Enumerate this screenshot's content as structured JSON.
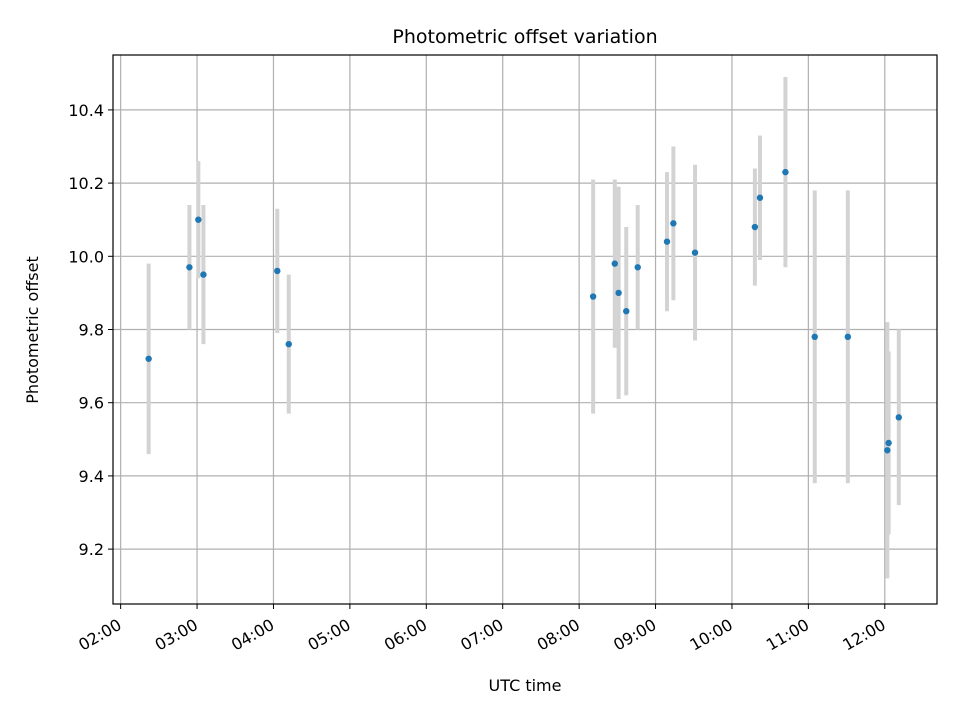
{
  "chart_data": {
    "type": "scatter",
    "title": "Photometric offset variation",
    "xlabel": "UTC time",
    "ylabel": "Photometric offset",
    "x_unit": "UTC time (HH:MM)",
    "xlim": [
      "01:54",
      "12:41"
    ],
    "ylim": [
      9.05,
      10.55
    ],
    "x_ticks": [
      "02:00",
      "03:00",
      "04:00",
      "05:00",
      "06:00",
      "07:00",
      "08:00",
      "09:00",
      "10:00",
      "11:00",
      "12:00"
    ],
    "y_ticks": [
      "9.2",
      "9.4",
      "9.6",
      "9.8",
      "10.0",
      "10.2",
      "10.4"
    ],
    "grid": true,
    "marker_color": "#1f77b4",
    "errorbar_color": "#d3d3d3",
    "points": [
      {
        "x": "02:22",
        "y": 9.72,
        "err": 0.26
      },
      {
        "x": "02:54",
        "y": 9.97,
        "err": 0.17
      },
      {
        "x": "03:01",
        "y": 10.1,
        "err": 0.16
      },
      {
        "x": "03:05",
        "y": 9.95,
        "err": 0.19
      },
      {
        "x": "04:03",
        "y": 9.96,
        "err": 0.17
      },
      {
        "x": "04:12",
        "y": 9.76,
        "err": 0.19
      },
      {
        "x": "08:11",
        "y": 9.89,
        "err": 0.32
      },
      {
        "x": "08:28",
        "y": 9.98,
        "err": 0.23
      },
      {
        "x": "08:31",
        "y": 9.9,
        "err": 0.29
      },
      {
        "x": "08:37",
        "y": 9.85,
        "err": 0.23
      },
      {
        "x": "08:46",
        "y": 9.97,
        "err": 0.17
      },
      {
        "x": "09:09",
        "y": 10.04,
        "err": 0.19
      },
      {
        "x": "09:14",
        "y": 10.09,
        "err": 0.21
      },
      {
        "x": "09:31",
        "y": 10.01,
        "err": 0.24
      },
      {
        "x": "10:18",
        "y": 10.08,
        "err": 0.16
      },
      {
        "x": "10:22",
        "y": 10.16,
        "err": 0.17
      },
      {
        "x": "10:42",
        "y": 10.23,
        "err": 0.26
      },
      {
        "x": "11:05",
        "y": 9.78,
        "err": 0.4
      },
      {
        "x": "11:31",
        "y": 9.78,
        "err": 0.4
      },
      {
        "x": "12:02",
        "y": 9.47,
        "err": 0.35
      },
      {
        "x": "12:03",
        "y": 9.49,
        "err": 0.25
      },
      {
        "x": "12:11",
        "y": 9.56,
        "err": 0.24
      }
    ]
  }
}
